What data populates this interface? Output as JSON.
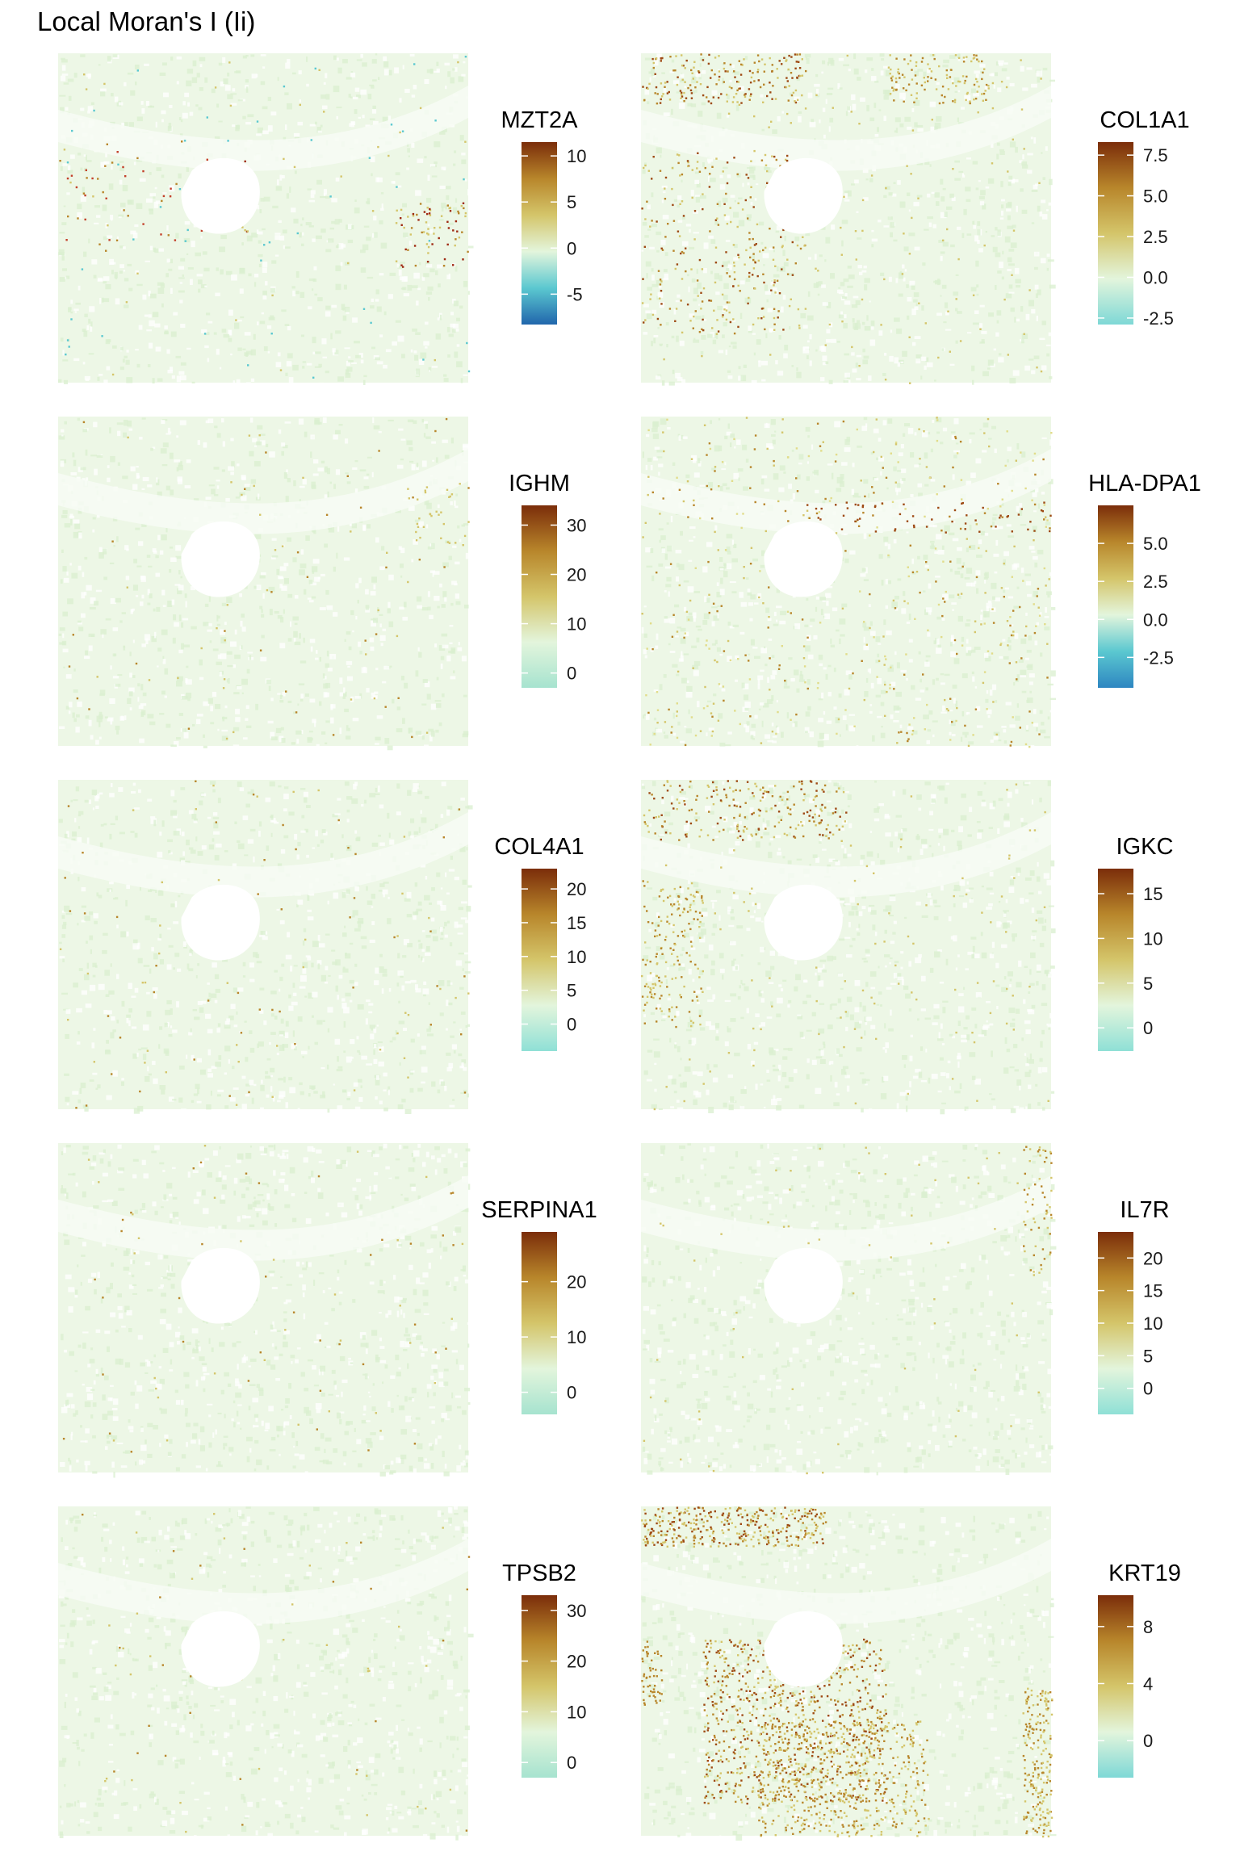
{
  "title": "Local Moran's I (Ii)",
  "chart_data": [
    {
      "type": "heatmap",
      "gene": "MZT2A",
      "legend_range": [
        -8.3,
        11.5
      ],
      "ticks": [
        10,
        5,
        0,
        -5
      ],
      "colors": [
        "#2166ac",
        "#5bc8d0",
        "#e3f5dc",
        "#d4c56a",
        "#b8862b",
        "#7b2d0a"
      ],
      "hotspots": "sparse red/dark spots around central hole and right edge"
    },
    {
      "type": "heatmap",
      "gene": "COL1A1",
      "legend_range": [
        -2.9,
        8.3
      ],
      "ticks": [
        7.5,
        5.0,
        2.5,
        0.0,
        -2.5
      ],
      "colors": [
        "#7ed8d6",
        "#e3f5dc",
        "#d4c56a",
        "#b8862b",
        "#7b2d0a"
      ],
      "hotspots": "top band and left region moderate orange"
    },
    {
      "type": "heatmap",
      "gene": "IGHM",
      "legend_range": [
        -3,
        34
      ],
      "ticks": [
        30,
        20,
        10,
        0
      ],
      "colors": [
        "#a6e3cf",
        "#e3f5dc",
        "#d4c56a",
        "#b8862b",
        "#7b2d0a"
      ],
      "hotspots": "very sparse"
    },
    {
      "type": "heatmap",
      "gene": "HLA-DPA1",
      "legend_range": [
        -4.5,
        7.5
      ],
      "ticks": [
        5.0,
        2.5,
        0.0,
        -2.5
      ],
      "colors": [
        "#2e86c1",
        "#5bc8d0",
        "#e3f5dc",
        "#d4c56a",
        "#b8862b",
        "#7b2d0a"
      ],
      "hotspots": "diffuse yellow across tissue"
    },
    {
      "type": "heatmap",
      "gene": "COL4A1",
      "legend_range": [
        -4,
        23
      ],
      "ticks": [
        20,
        15,
        10,
        5,
        0
      ],
      "colors": [
        "#8fe0d6",
        "#e3f5dc",
        "#d4c56a",
        "#b8862b",
        "#7b2d0a"
      ],
      "hotspots": "very sparse"
    },
    {
      "type": "heatmap",
      "gene": "IGKC",
      "legend_range": [
        -2.6,
        17.8
      ],
      "ticks": [
        15,
        10,
        5,
        0
      ],
      "colors": [
        "#8fe0d6",
        "#e3f5dc",
        "#d4c56a",
        "#b8862b",
        "#7b2d0a"
      ],
      "hotspots": "top-left and left edge orange"
    },
    {
      "type": "heatmap",
      "gene": "SERPINA1",
      "legend_range": [
        -4,
        29
      ],
      "ticks": [
        20,
        10,
        0
      ],
      "colors": [
        "#a6e3cf",
        "#e3f5dc",
        "#d4c56a",
        "#b8862b",
        "#7b2d0a"
      ],
      "hotspots": "very sparse"
    },
    {
      "type": "heatmap",
      "gene": "IL7R",
      "legend_range": [
        -4,
        24
      ],
      "ticks": [
        20,
        15,
        10,
        5,
        0
      ],
      "colors": [
        "#8fe0d6",
        "#e3f5dc",
        "#d4c56a",
        "#b8862b",
        "#7b2d0a"
      ],
      "hotspots": "right edge sparse"
    },
    {
      "type": "heatmap",
      "gene": "TPSB2",
      "legend_range": [
        -3,
        33
      ],
      "ticks": [
        30,
        20,
        10,
        0
      ],
      "colors": [
        "#a6e3cf",
        "#e3f5dc",
        "#d4c56a",
        "#b8862b",
        "#7b2d0a"
      ],
      "hotspots": "very sparse"
    },
    {
      "type": "heatmap",
      "gene": "KRT19",
      "legend_range": [
        -2.6,
        10.2
      ],
      "ticks": [
        8,
        4,
        0
      ],
      "colors": [
        "#7ed8d6",
        "#e3f5dc",
        "#d4c56a",
        "#b8862b",
        "#7b2d0a"
      ],
      "hotspots": "large orange regions lower-left/center and top"
    }
  ]
}
